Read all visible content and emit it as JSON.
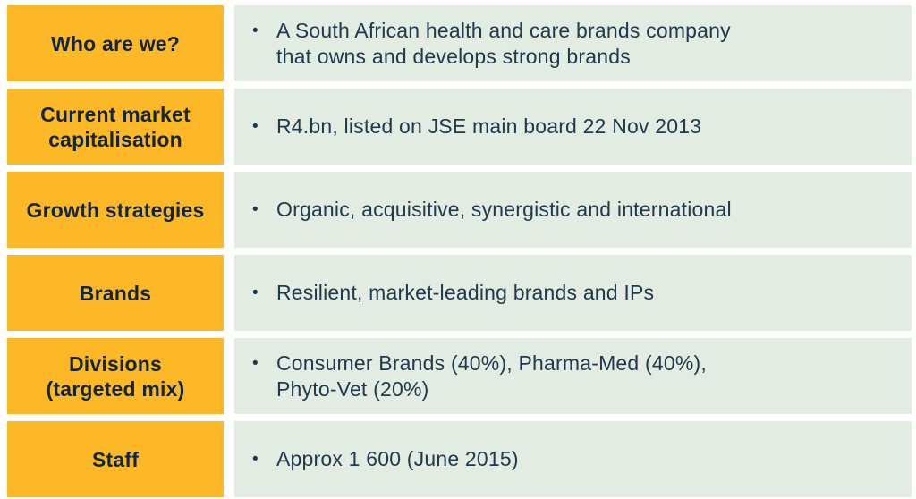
{
  "table": {
    "bullet": "•",
    "colors": {
      "label_bg": "#FCB826",
      "content_bg": "#E3ECE2",
      "label_text": "#12263F",
      "content_text": "#21394C",
      "background": "#FFFFFF"
    },
    "rows": [
      {
        "label_lines": [
          "Who are we?"
        ],
        "content_lines": [
          "A South African health and care brands company",
          "that owns and develops strong brands"
        ]
      },
      {
        "label_lines": [
          "Current market",
          "capitalisation"
        ],
        "content_lines": [
          "R4.bn, listed on JSE main board 22 Nov 2013"
        ]
      },
      {
        "label_lines": [
          "Growth strategies"
        ],
        "content_lines": [
          "Organic, acquisitive, synergistic and international"
        ]
      },
      {
        "label_lines": [
          "Brands"
        ],
        "content_lines": [
          "Resilient, market-leading brands and IPs"
        ]
      },
      {
        "label_lines": [
          "Divisions",
          "(targeted mix)"
        ],
        "content_lines": [
          "Consumer Brands (40%), Pharma-Med (40%),",
          "Phyto-Vet (20%)"
        ]
      },
      {
        "label_lines": [
          "Staff"
        ],
        "content_lines": [
          "Approx 1 600 (June 2015)"
        ]
      }
    ]
  }
}
